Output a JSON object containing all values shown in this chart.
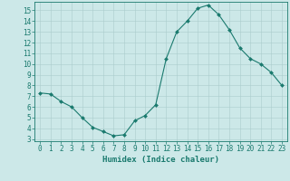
{
  "x": [
    0,
    1,
    2,
    3,
    4,
    5,
    6,
    7,
    8,
    9,
    10,
    11,
    12,
    13,
    14,
    15,
    16,
    17,
    18,
    19,
    20,
    21,
    22,
    23
  ],
  "y": [
    7.3,
    7.2,
    6.5,
    6.0,
    5.0,
    4.1,
    3.7,
    3.3,
    3.4,
    4.7,
    5.2,
    6.2,
    10.5,
    13.0,
    14.0,
    15.2,
    15.5,
    14.6,
    13.2,
    11.5,
    10.5,
    10.0,
    9.2,
    8.0
  ],
  "line_color": "#1a7a6e",
  "marker": "D",
  "marker_size": 2,
  "bg_color": "#cce8e8",
  "grid_color": "#aacccc",
  "xlabel": "Humidex (Indice chaleur)",
  "xlim_min": -0.5,
  "xlim_max": 23.5,
  "ylim_min": 2.8,
  "ylim_max": 15.8,
  "yticks": [
    3,
    4,
    5,
    6,
    7,
    8,
    9,
    10,
    11,
    12,
    13,
    14,
    15
  ],
  "xticks": [
    0,
    1,
    2,
    3,
    4,
    5,
    6,
    7,
    8,
    9,
    10,
    11,
    12,
    13,
    14,
    15,
    16,
    17,
    18,
    19,
    20,
    21,
    22,
    23
  ],
  "label_fontsize": 6.5,
  "tick_fontsize": 5.5
}
